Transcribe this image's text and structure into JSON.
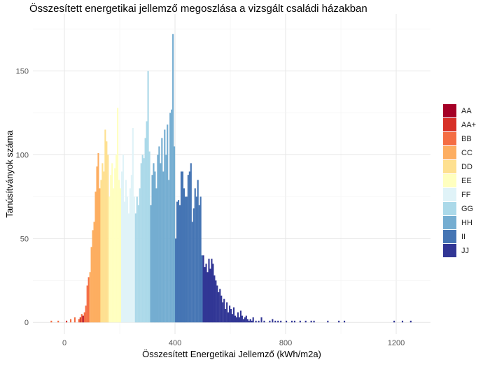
{
  "chart_data": {
    "type": "bar",
    "subtype": "histogram",
    "title": "Összesített energetikai jellemző megoszlása a vizsgált családi házakban",
    "xlabel": "Összesített Energetikai Jellemző (kWh/m2a)",
    "ylabel": "Tanúsítványok száma",
    "xlim": [
      -114,
      1324
    ],
    "ylim": [
      -7,
      184
    ],
    "x_ticks": [
      0,
      400,
      800,
      1200
    ],
    "x_tick_labels": [
      "0",
      "400",
      "800",
      "1200"
    ],
    "y_ticks": [
      0,
      50,
      100,
      150
    ],
    "y_tick_labels": [
      "0",
      "50",
      "100",
      "150"
    ],
    "grid": true,
    "bin_width": 5,
    "legend_position": "right",
    "legend": [
      {
        "label": "AA",
        "color": "#a50026"
      },
      {
        "label": "AA+",
        "color": "#d73027"
      },
      {
        "label": "BB",
        "color": "#f46d43"
      },
      {
        "label": "CC",
        "color": "#fdae61"
      },
      {
        "label": "DD",
        "color": "#fee090"
      },
      {
        "label": "EE",
        "color": "#ffffbf"
      },
      {
        "label": "FF",
        "color": "#e0f3f8"
      },
      {
        "label": "GG",
        "color": "#abd9e9"
      },
      {
        "label": "HH",
        "color": "#74add1"
      },
      {
        "label": "II",
        "color": "#4575b4"
      },
      {
        "label": "JJ",
        "color": "#313695"
      }
    ],
    "bins": [
      {
        "x": -50,
        "count": 1,
        "class": "BB"
      },
      {
        "x": -25,
        "count": 1,
        "class": "BB"
      },
      {
        "x": 5,
        "count": 1,
        "class": "AA+"
      },
      {
        "x": 20,
        "count": 2,
        "class": "BB"
      },
      {
        "x": 35,
        "count": 3,
        "class": "BB"
      },
      {
        "x": 50,
        "count": 2,
        "class": "BB"
      },
      {
        "x": 55,
        "count": 3,
        "class": "AA+"
      },
      {
        "x": 60,
        "count": 5,
        "class": "BB"
      },
      {
        "x": 65,
        "count": 4,
        "class": "AA"
      },
      {
        "x": 70,
        "count": 6,
        "class": "BB"
      },
      {
        "x": 75,
        "count": 10,
        "class": "BB"
      },
      {
        "x": 80,
        "count": 22,
        "class": "BB"
      },
      {
        "x": 85,
        "count": 27,
        "class": "BB"
      },
      {
        "x": 90,
        "count": 30,
        "class": "CC"
      },
      {
        "x": 95,
        "count": 45,
        "class": "CC"
      },
      {
        "x": 100,
        "count": 55,
        "class": "CC"
      },
      {
        "x": 105,
        "count": 60,
        "class": "CC"
      },
      {
        "x": 110,
        "count": 78,
        "class": "CC"
      },
      {
        "x": 115,
        "count": 93,
        "class": "CC"
      },
      {
        "x": 120,
        "count": 101,
        "class": "CC"
      },
      {
        "x": 125,
        "count": 80,
        "class": "CC"
      },
      {
        "x": 130,
        "count": 85,
        "class": "DD"
      },
      {
        "x": 135,
        "count": 95,
        "class": "DD"
      },
      {
        "x": 140,
        "count": 90,
        "class": "DD"
      },
      {
        "x": 145,
        "count": 115,
        "class": "DD"
      },
      {
        "x": 150,
        "count": 108,
        "class": "DD"
      },
      {
        "x": 155,
        "count": 100,
        "class": "DD"
      },
      {
        "x": 160,
        "count": 75,
        "class": "EE"
      },
      {
        "x": 165,
        "count": 88,
        "class": "EE"
      },
      {
        "x": 170,
        "count": 95,
        "class": "EE"
      },
      {
        "x": 175,
        "count": 80,
        "class": "EE"
      },
      {
        "x": 180,
        "count": 92,
        "class": "EE"
      },
      {
        "x": 185,
        "count": 100,
        "class": "EE"
      },
      {
        "x": 190,
        "count": 128,
        "class": "EE"
      },
      {
        "x": 195,
        "count": 85,
        "class": "EE"
      },
      {
        "x": 200,
        "count": 80,
        "class": "EE"
      },
      {
        "x": 205,
        "count": 90,
        "class": "FF"
      },
      {
        "x": 210,
        "count": 100,
        "class": "FF"
      },
      {
        "x": 215,
        "count": 72,
        "class": "FF"
      },
      {
        "x": 220,
        "count": 85,
        "class": "FF"
      },
      {
        "x": 225,
        "count": 75,
        "class": "FF"
      },
      {
        "x": 230,
        "count": 65,
        "class": "FF"
      },
      {
        "x": 235,
        "count": 80,
        "class": "FF"
      },
      {
        "x": 240,
        "count": 88,
        "class": "FF"
      },
      {
        "x": 245,
        "count": 116,
        "class": "FF"
      },
      {
        "x": 250,
        "count": 75,
        "class": "FF"
      },
      {
        "x": 255,
        "count": 65,
        "class": "GG"
      },
      {
        "x": 260,
        "count": 75,
        "class": "GG"
      },
      {
        "x": 265,
        "count": 70,
        "class": "GG"
      },
      {
        "x": 270,
        "count": 80,
        "class": "GG"
      },
      {
        "x": 275,
        "count": 95,
        "class": "GG"
      },
      {
        "x": 280,
        "count": 100,
        "class": "GG"
      },
      {
        "x": 285,
        "count": 98,
        "class": "GG"
      },
      {
        "x": 290,
        "count": 110,
        "class": "GG"
      },
      {
        "x": 295,
        "count": 120,
        "class": "GG"
      },
      {
        "x": 300,
        "count": 150,
        "class": "GG"
      },
      {
        "x": 305,
        "count": 102,
        "class": "GG"
      },
      {
        "x": 310,
        "count": 70,
        "class": "HH"
      },
      {
        "x": 315,
        "count": 88,
        "class": "HH"
      },
      {
        "x": 320,
        "count": 95,
        "class": "HH"
      },
      {
        "x": 325,
        "count": 90,
        "class": "HH"
      },
      {
        "x": 330,
        "count": 80,
        "class": "HH"
      },
      {
        "x": 335,
        "count": 100,
        "class": "HH"
      },
      {
        "x": 340,
        "count": 105,
        "class": "HH"
      },
      {
        "x": 345,
        "count": 95,
        "class": "HH"
      },
      {
        "x": 350,
        "count": 110,
        "class": "HH"
      },
      {
        "x": 355,
        "count": 90,
        "class": "HH"
      },
      {
        "x": 360,
        "count": 115,
        "class": "HH"
      },
      {
        "x": 365,
        "count": 100,
        "class": "HH"
      },
      {
        "x": 370,
        "count": 118,
        "class": "HH"
      },
      {
        "x": 375,
        "count": 85,
        "class": "HH"
      },
      {
        "x": 380,
        "count": 125,
        "class": "HH"
      },
      {
        "x": 385,
        "count": 127,
        "class": "HH"
      },
      {
        "x": 390,
        "count": 172,
        "class": "HH"
      },
      {
        "x": 395,
        "count": 105,
        "class": "HH"
      },
      {
        "x": 400,
        "count": 50,
        "class": "II"
      },
      {
        "x": 405,
        "count": 72,
        "class": "II"
      },
      {
        "x": 410,
        "count": 73,
        "class": "II"
      },
      {
        "x": 415,
        "count": 70,
        "class": "II"
      },
      {
        "x": 420,
        "count": 90,
        "class": "II"
      },
      {
        "x": 425,
        "count": 90,
        "class": "II"
      },
      {
        "x": 430,
        "count": 80,
        "class": "II"
      },
      {
        "x": 435,
        "count": 75,
        "class": "II"
      },
      {
        "x": 440,
        "count": 75,
        "class": "II"
      },
      {
        "x": 445,
        "count": 88,
        "class": "II"
      },
      {
        "x": 450,
        "count": 90,
        "class": "II"
      },
      {
        "x": 455,
        "count": 95,
        "class": "II"
      },
      {
        "x": 460,
        "count": 60,
        "class": "II"
      },
      {
        "x": 465,
        "count": 68,
        "class": "II"
      },
      {
        "x": 470,
        "count": 80,
        "class": "II"
      },
      {
        "x": 475,
        "count": 75,
        "class": "II"
      },
      {
        "x": 480,
        "count": 85,
        "class": "II"
      },
      {
        "x": 485,
        "count": 70,
        "class": "II"
      },
      {
        "x": 490,
        "count": 75,
        "class": "II"
      },
      {
        "x": 495,
        "count": 40,
        "class": "II"
      },
      {
        "x": 500,
        "count": 40,
        "class": "JJ"
      },
      {
        "x": 505,
        "count": 33,
        "class": "JJ"
      },
      {
        "x": 510,
        "count": 35,
        "class": "JJ"
      },
      {
        "x": 515,
        "count": 30,
        "class": "JJ"
      },
      {
        "x": 520,
        "count": 38,
        "class": "JJ"
      },
      {
        "x": 525,
        "count": 32,
        "class": "JJ"
      },
      {
        "x": 530,
        "count": 38,
        "class": "JJ"
      },
      {
        "x": 535,
        "count": 35,
        "class": "JJ"
      },
      {
        "x": 540,
        "count": 28,
        "class": "JJ"
      },
      {
        "x": 545,
        "count": 25,
        "class": "JJ"
      },
      {
        "x": 550,
        "count": 22,
        "class": "JJ"
      },
      {
        "x": 555,
        "count": 18,
        "class": "JJ"
      },
      {
        "x": 560,
        "count": 20,
        "class": "JJ"
      },
      {
        "x": 565,
        "count": 16,
        "class": "JJ"
      },
      {
        "x": 570,
        "count": 12,
        "class": "JJ"
      },
      {
        "x": 575,
        "count": 14,
        "class": "JJ"
      },
      {
        "x": 580,
        "count": 8,
        "class": "JJ"
      },
      {
        "x": 585,
        "count": 12,
        "class": "JJ"
      },
      {
        "x": 590,
        "count": 6,
        "class": "JJ"
      },
      {
        "x": 595,
        "count": 10,
        "class": "JJ"
      },
      {
        "x": 600,
        "count": 8,
        "class": "JJ"
      },
      {
        "x": 605,
        "count": 5,
        "class": "JJ"
      },
      {
        "x": 610,
        "count": 9,
        "class": "JJ"
      },
      {
        "x": 615,
        "count": 4,
        "class": "JJ"
      },
      {
        "x": 620,
        "count": 3,
        "class": "JJ"
      },
      {
        "x": 625,
        "count": 6,
        "class": "JJ"
      },
      {
        "x": 630,
        "count": 3,
        "class": "JJ"
      },
      {
        "x": 635,
        "count": 7,
        "class": "JJ"
      },
      {
        "x": 640,
        "count": 4,
        "class": "JJ"
      },
      {
        "x": 645,
        "count": 2,
        "class": "JJ"
      },
      {
        "x": 650,
        "count": 3,
        "class": "JJ"
      },
      {
        "x": 655,
        "count": 4,
        "class": "JJ"
      },
      {
        "x": 660,
        "count": 2,
        "class": "JJ"
      },
      {
        "x": 665,
        "count": 1,
        "class": "JJ"
      },
      {
        "x": 670,
        "count": 2,
        "class": "JJ"
      },
      {
        "x": 675,
        "count": 1,
        "class": "JJ"
      },
      {
        "x": 680,
        "count": 3,
        "class": "JJ"
      },
      {
        "x": 690,
        "count": 1,
        "class": "JJ"
      },
      {
        "x": 700,
        "count": 1,
        "class": "JJ"
      },
      {
        "x": 710,
        "count": 3,
        "class": "JJ"
      },
      {
        "x": 720,
        "count": 1,
        "class": "JJ"
      },
      {
        "x": 740,
        "count": 1,
        "class": "JJ"
      },
      {
        "x": 750,
        "count": 2,
        "class": "JJ"
      },
      {
        "x": 760,
        "count": 1,
        "class": "JJ"
      },
      {
        "x": 770,
        "count": 1,
        "class": "JJ"
      },
      {
        "x": 780,
        "count": 1,
        "class": "JJ"
      },
      {
        "x": 800,
        "count": 1,
        "class": "JJ"
      },
      {
        "x": 820,
        "count": 1,
        "class": "JJ"
      },
      {
        "x": 830,
        "count": 1,
        "class": "JJ"
      },
      {
        "x": 850,
        "count": 1,
        "class": "JJ"
      },
      {
        "x": 870,
        "count": 1,
        "class": "JJ"
      },
      {
        "x": 890,
        "count": 1,
        "class": "JJ"
      },
      {
        "x": 900,
        "count": 1,
        "class": "JJ"
      },
      {
        "x": 950,
        "count": 1,
        "class": "JJ"
      },
      {
        "x": 990,
        "count": 1,
        "class": "JJ"
      },
      {
        "x": 1010,
        "count": 1,
        "class": "JJ"
      },
      {
        "x": 1190,
        "count": 1,
        "class": "JJ"
      },
      {
        "x": 1220,
        "count": 1,
        "class": "JJ"
      },
      {
        "x": 1250,
        "count": 1,
        "class": "JJ"
      }
    ]
  }
}
